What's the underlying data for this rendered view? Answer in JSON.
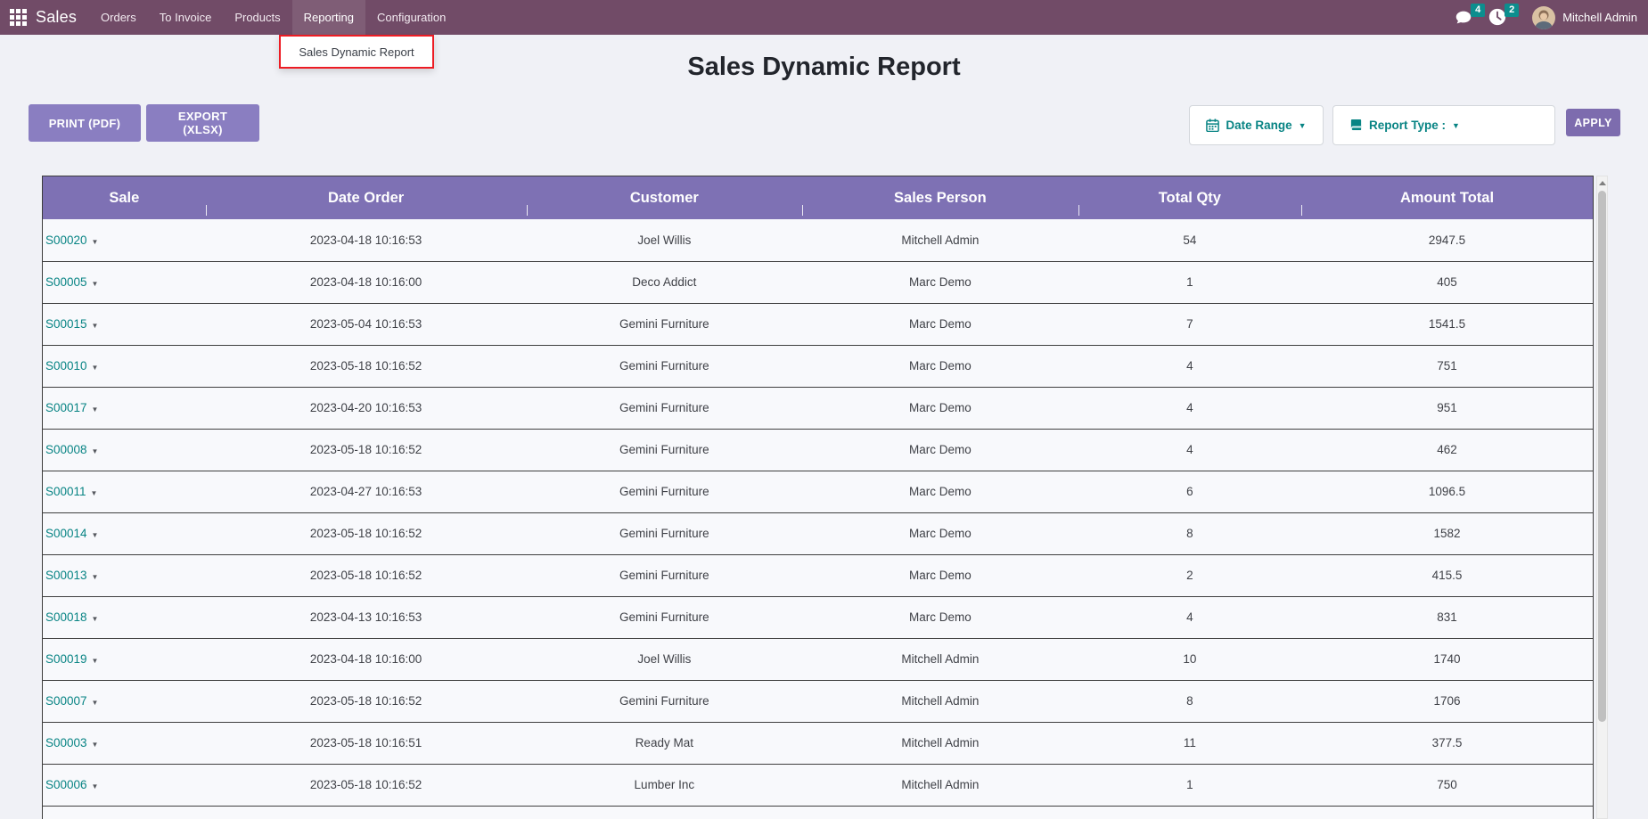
{
  "nav": {
    "app_name": "Sales",
    "items": [
      "Orders",
      "To Invoice",
      "Products",
      "Reporting",
      "Configuration"
    ],
    "active_item": "Reporting",
    "dropdown_item": "Sales Dynamic Report",
    "messages_badge": "4",
    "activities_badge": "2",
    "user": "Mitchell Admin"
  },
  "page": {
    "title": "Sales Dynamic Report"
  },
  "toolbar": {
    "print_label": "PRINT (PDF)",
    "export_label": "EXPORT (XLSX)",
    "date_range_label": "Date Range",
    "report_type_label": "Report Type :",
    "apply_label": "APPLY"
  },
  "table": {
    "columns": [
      "Sale",
      "Date Order",
      "Customer",
      "Sales Person",
      "Total Qty",
      "Amount Total"
    ],
    "rows": [
      {
        "sale": "S00020",
        "date": "2023-04-18 10:16:53",
        "customer": "Joel Willis",
        "salesperson": "Mitchell Admin",
        "qty": "54",
        "amount": "2947.5"
      },
      {
        "sale": "S00005",
        "date": "2023-04-18 10:16:00",
        "customer": "Deco Addict",
        "salesperson": "Marc Demo",
        "qty": "1",
        "amount": "405"
      },
      {
        "sale": "S00015",
        "date": "2023-05-04 10:16:53",
        "customer": "Gemini Furniture",
        "salesperson": "Marc Demo",
        "qty": "7",
        "amount": "1541.5"
      },
      {
        "sale": "S00010",
        "date": "2023-05-18 10:16:52",
        "customer": "Gemini Furniture",
        "salesperson": "Marc Demo",
        "qty": "4",
        "amount": "751"
      },
      {
        "sale": "S00017",
        "date": "2023-04-20 10:16:53",
        "customer": "Gemini Furniture",
        "salesperson": "Marc Demo",
        "qty": "4",
        "amount": "951"
      },
      {
        "sale": "S00008",
        "date": "2023-05-18 10:16:52",
        "customer": "Gemini Furniture",
        "salesperson": "Marc Demo",
        "qty": "4",
        "amount": "462"
      },
      {
        "sale": "S00011",
        "date": "2023-04-27 10:16:53",
        "customer": "Gemini Furniture",
        "salesperson": "Marc Demo",
        "qty": "6",
        "amount": "1096.5"
      },
      {
        "sale": "S00014",
        "date": "2023-05-18 10:16:52",
        "customer": "Gemini Furniture",
        "salesperson": "Marc Demo",
        "qty": "8",
        "amount": "1582"
      },
      {
        "sale": "S00013",
        "date": "2023-05-18 10:16:52",
        "customer": "Gemini Furniture",
        "salesperson": "Marc Demo",
        "qty": "2",
        "amount": "415.5"
      },
      {
        "sale": "S00018",
        "date": "2023-04-13 10:16:53",
        "customer": "Gemini Furniture",
        "salesperson": "Marc Demo",
        "qty": "4",
        "amount": "831"
      },
      {
        "sale": "S00019",
        "date": "2023-04-18 10:16:00",
        "customer": "Joel Willis",
        "salesperson": "Mitchell Admin",
        "qty": "10",
        "amount": "1740"
      },
      {
        "sale": "S00007",
        "date": "2023-05-18 10:16:52",
        "customer": "Gemini Furniture",
        "salesperson": "Mitchell Admin",
        "qty": "8",
        "amount": "1706"
      },
      {
        "sale": "S00003",
        "date": "2023-05-18 10:16:51",
        "customer": "Ready Mat",
        "salesperson": "Mitchell Admin",
        "qty": "11",
        "amount": "377.5"
      },
      {
        "sale": "S00006",
        "date": "2023-05-18 10:16:52",
        "customer": "Lumber Inc",
        "salesperson": "Mitchell Admin",
        "qty": "1",
        "amount": "750"
      }
    ]
  },
  "colors": {
    "navbar": "#714B67",
    "table_header": "#7E71B4",
    "accent_teal": "#088484",
    "badge_teal": "#0C8E8E",
    "button_purple": "#8A7EC1",
    "apply_purple": "#7D6CAE",
    "annotation_red": "#ED1C24"
  }
}
